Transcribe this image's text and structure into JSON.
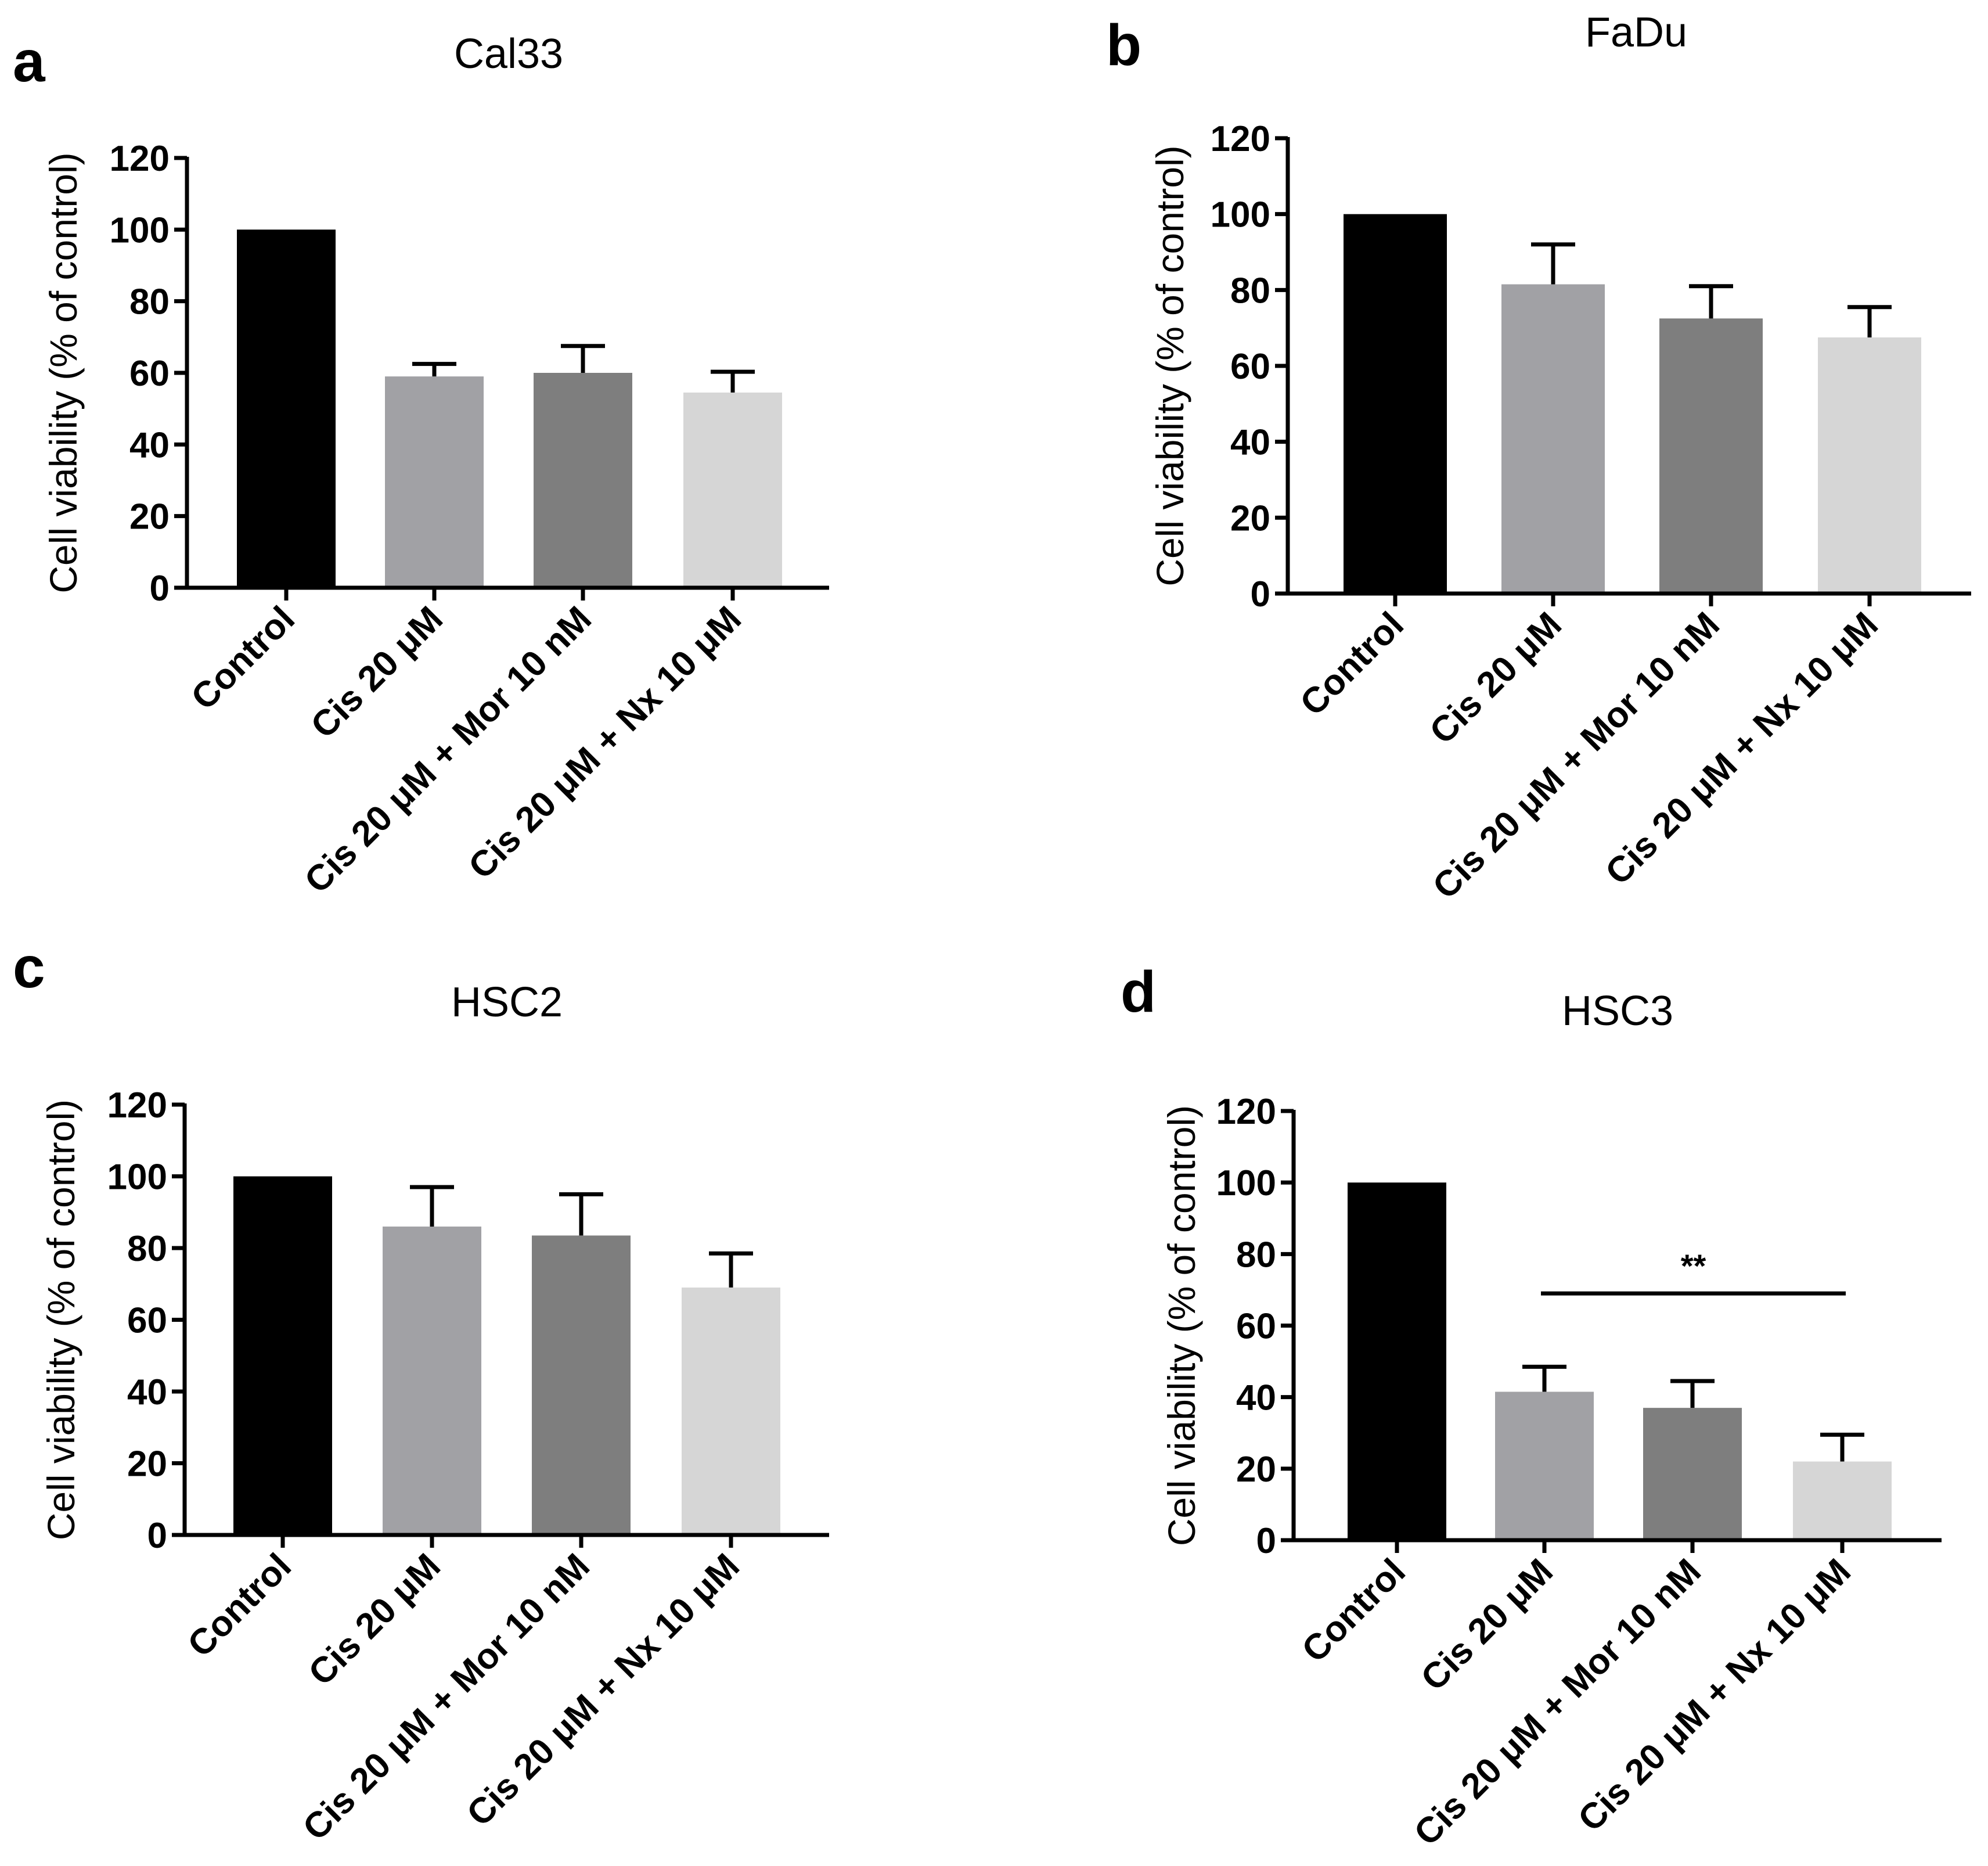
{
  "figure": {
    "panels_note": "Four bar charts of cell viability"
  },
  "chart_data": [
    {
      "id": "a",
      "letter": "a",
      "type": "bar",
      "title": "Cal33",
      "xlabel": "",
      "ylabel": "Cell viability (% of control)",
      "ylim": [
        0,
        120
      ],
      "yticks": [
        0,
        20,
        40,
        60,
        80,
        100,
        120
      ],
      "categories": [
        "Control",
        "Cis 20 μM",
        "Cis 20 μM + Mor 10 nM",
        "Cis 20 μM + Nx 10 μM"
      ],
      "values": [
        100,
        59,
        60,
        54.5
      ],
      "errors": [
        0,
        3.5,
        7.5,
        5.8
      ],
      "colors": [
        "#000000",
        "#a1a1a5",
        "#7e7e7e",
        "#d6d6d6"
      ],
      "significance": null
    },
    {
      "id": "b",
      "letter": "b",
      "type": "bar",
      "title": "FaDu",
      "xlabel": "",
      "ylabel": "Cell viability (% of control)",
      "ylim": [
        0,
        120
      ],
      "yticks": [
        0,
        20,
        40,
        60,
        80,
        100,
        120
      ],
      "categories": [
        "Control",
        "Cis 20 μM",
        "Cis 20 μM + Mor 10 nM",
        "Cis 20 μM + Nx 10 μM"
      ],
      "values": [
        100,
        81.5,
        72.5,
        67.5
      ],
      "errors": [
        0,
        10.5,
        8.5,
        8.0
      ],
      "colors": [
        "#000000",
        "#a1a1a5",
        "#7e7e7e",
        "#d6d6d6"
      ],
      "significance": null
    },
    {
      "id": "c",
      "letter": "c",
      "type": "bar",
      "title": "HSC2",
      "xlabel": "",
      "ylabel": "Cell viability (% of control)",
      "ylim": [
        0,
        120
      ],
      "yticks": [
        0,
        20,
        40,
        60,
        80,
        100,
        120
      ],
      "categories": [
        "Control",
        "Cis 20 μM",
        "Cis 20 μM + Mor 10 nM",
        "Cis 20 μM + Nx 10 μM"
      ],
      "values": [
        100,
        86,
        83.5,
        69
      ],
      "errors": [
        0,
        11,
        11.5,
        9.5
      ],
      "colors": [
        "#000000",
        "#a1a1a5",
        "#7e7e7e",
        "#d6d6d6"
      ],
      "significance": null
    },
    {
      "id": "d",
      "letter": "d",
      "type": "bar",
      "title": "HSC3",
      "xlabel": "",
      "ylabel": "Cell viability (% of control)",
      "ylim": [
        0,
        120
      ],
      "yticks": [
        0,
        20,
        40,
        60,
        80,
        100,
        120
      ],
      "categories": [
        "Control",
        "Cis 20 μM",
        "Cis 20 μM + Mor 10 nM",
        "Cis 20 μM + Nx 10 μM"
      ],
      "values": [
        100,
        41.5,
        37,
        22
      ],
      "errors": [
        0,
        7,
        7.5,
        7.5
      ],
      "colors": [
        "#000000",
        "#a1a1a5",
        "#7e7e7e",
        "#d6d6d6"
      ],
      "significance": {
        "from": 1,
        "to": 3,
        "label": "**",
        "y": 69
      }
    }
  ]
}
